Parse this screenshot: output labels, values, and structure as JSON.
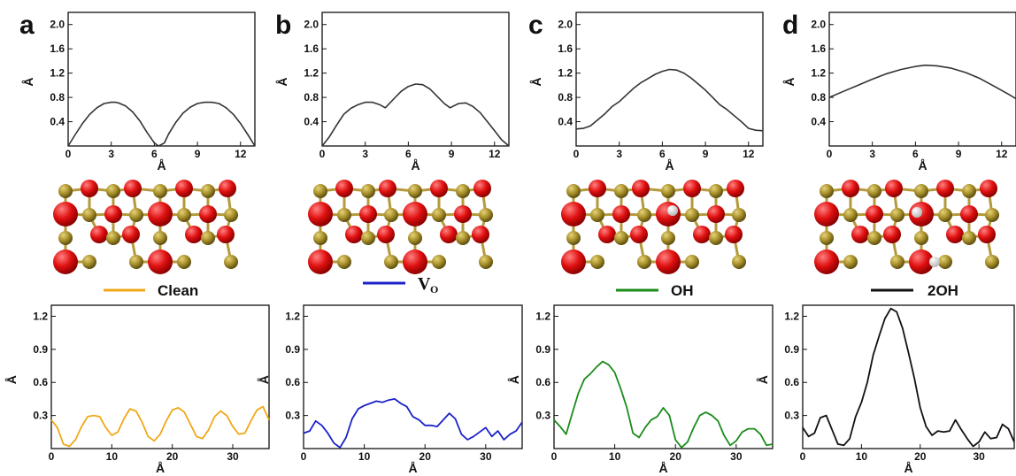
{
  "panel_labels": [
    "a",
    "b",
    "c",
    "d"
  ],
  "chart_data": [
    {
      "type": "line",
      "panel": "a",
      "role": "top",
      "xlabel": "Å",
      "ylabel": "Å",
      "xlim": [
        0,
        13
      ],
      "ylim": [
        0,
        2.2
      ],
      "xticks": [
        "0",
        "3",
        "6",
        "9",
        "12"
      ],
      "yticks": [
        "0.4",
        "0.8",
        "1.2",
        "1.6",
        "2.0"
      ],
      "color": "#333333",
      "x": [
        0,
        0.5,
        1,
        1.5,
        2,
        2.5,
        3,
        3.3,
        3.5,
        4,
        4.5,
        5,
        5.5,
        6,
        6.3,
        6.7,
        7,
        7.5,
        8,
        8.5,
        9,
        9.5,
        10,
        10.5,
        11,
        11.5,
        12,
        12.5,
        13
      ],
      "y": [
        0,
        0.19,
        0.37,
        0.52,
        0.63,
        0.7,
        0.72,
        0.72,
        0.71,
        0.66,
        0.56,
        0.41,
        0.22,
        0.05,
        0,
        0.05,
        0.2,
        0.39,
        0.54,
        0.64,
        0.7,
        0.72,
        0.72,
        0.7,
        0.63,
        0.52,
        0.37,
        0.19,
        0
      ]
    },
    {
      "type": "line",
      "panel": "b",
      "role": "top",
      "xlabel": "Å",
      "ylabel": "Å",
      "xlim": [
        0,
        13
      ],
      "ylim": [
        0,
        2.2
      ],
      "xticks": [
        "0",
        "3",
        "6",
        "9",
        "12"
      ],
      "yticks": [
        "0.4",
        "0.8",
        "1.2",
        "1.6",
        "2.0"
      ],
      "color": "#333333",
      "x": [
        0,
        0.5,
        1,
        1.5,
        2,
        2.5,
        3,
        3.5,
        4,
        4.4,
        5,
        5.5,
        6,
        6.5,
        7,
        7.5,
        8,
        8.5,
        8.9,
        9.5,
        10,
        10.5,
        11,
        11.5,
        12,
        12.5,
        13
      ],
      "y": [
        0,
        0.15,
        0.34,
        0.52,
        0.62,
        0.68,
        0.72,
        0.72,
        0.68,
        0.63,
        0.78,
        0.9,
        0.98,
        1.02,
        1.01,
        0.94,
        0.82,
        0.7,
        0.63,
        0.7,
        0.71,
        0.65,
        0.55,
        0.4,
        0.25,
        0.1,
        0
      ]
    },
    {
      "type": "line",
      "panel": "c",
      "role": "top",
      "xlabel": "Å",
      "ylabel": "Å",
      "xlim": [
        0,
        13
      ],
      "ylim": [
        0,
        2.2
      ],
      "xticks": [
        "0",
        "3",
        "6",
        "9",
        "12"
      ],
      "yticks": [
        "0.4",
        "0.8",
        "1.2",
        "1.6",
        "2.0"
      ],
      "color": "#333333",
      "x": [
        0,
        0.5,
        1,
        1.5,
        2,
        2.5,
        3,
        3.5,
        4,
        4.5,
        5,
        5.5,
        6,
        6.5,
        7,
        7.5,
        8,
        8.5,
        9,
        9.5,
        10,
        10.5,
        11,
        11.5,
        12,
        12.5,
        13
      ],
      "y": [
        0.28,
        0.29,
        0.33,
        0.43,
        0.53,
        0.65,
        0.73,
        0.84,
        0.95,
        1.04,
        1.11,
        1.18,
        1.23,
        1.26,
        1.25,
        1.2,
        1.12,
        1.02,
        0.92,
        0.8,
        0.68,
        0.6,
        0.5,
        0.4,
        0.29,
        0.26,
        0.25
      ]
    },
    {
      "type": "line",
      "panel": "d",
      "role": "top",
      "xlabel": "Å",
      "ylabel": "Å",
      "xlim": [
        0,
        13
      ],
      "ylim": [
        0,
        2.2
      ],
      "xticks": [
        "0",
        "3",
        "6",
        "9",
        "12"
      ],
      "yticks": [
        "0.4",
        "0.8",
        "1.2",
        "1.6",
        "2.0"
      ],
      "color": "#333333",
      "x": [
        0,
        1,
        2,
        3,
        4,
        5,
        6,
        6.7,
        7.5,
        8.5,
        9.5,
        10.5,
        11.5,
        12.5,
        13
      ],
      "y": [
        0.8,
        0.9,
        1.0,
        1.1,
        1.19,
        1.26,
        1.31,
        1.33,
        1.32,
        1.28,
        1.21,
        1.11,
        0.98,
        0.85,
        0.78
      ]
    },
    {
      "type": "line",
      "panel": "a",
      "role": "bottom",
      "xlabel": "Å",
      "ylabel": "Å",
      "xlim": [
        0,
        36
      ],
      "ylim": [
        0,
        1.3
      ],
      "xticks": [
        "0",
        "10",
        "20",
        "30"
      ],
      "yticks": [
        "0.3",
        "0.6",
        "0.9",
        "1.2"
      ],
      "legend": "Clean",
      "color": "#f0a818",
      "x": [
        0,
        1,
        2,
        3,
        4,
        5,
        6,
        7,
        8,
        9,
        10,
        11,
        12,
        13,
        14,
        15,
        16,
        17,
        18,
        19,
        20,
        21,
        22,
        23,
        24,
        25,
        26,
        27,
        28,
        29,
        30,
        31,
        32,
        33,
        34,
        35,
        36
      ],
      "y": [
        0.26,
        0.19,
        0.04,
        0.02,
        0.08,
        0.2,
        0.29,
        0.3,
        0.29,
        0.19,
        0.12,
        0.15,
        0.27,
        0.36,
        0.34,
        0.24,
        0.11,
        0.07,
        0.13,
        0.25,
        0.35,
        0.37,
        0.33,
        0.22,
        0.11,
        0.09,
        0.17,
        0.29,
        0.34,
        0.3,
        0.2,
        0.13,
        0.14,
        0.25,
        0.35,
        0.38,
        0.26
      ]
    },
    {
      "type": "line",
      "panel": "b",
      "role": "bottom",
      "xlabel": "Å",
      "ylabel": "Å",
      "xlim": [
        0,
        36
      ],
      "ylim": [
        0,
        1.3
      ],
      "xticks": [
        "0",
        "10",
        "20",
        "30"
      ],
      "yticks": [
        "0.3",
        "0.6",
        "0.9",
        "1.2"
      ],
      "legend": "VO",
      "color": "#1c21c8",
      "x": [
        0,
        1,
        2,
        3,
        4,
        5,
        6,
        7,
        8,
        9,
        10,
        11,
        12,
        13,
        14,
        15,
        16,
        17,
        18,
        19,
        20,
        21,
        22,
        23,
        24,
        25,
        26,
        27,
        28,
        29,
        30,
        31,
        32,
        33,
        34,
        35,
        36
      ],
      "y": [
        0.14,
        0.16,
        0.25,
        0.21,
        0.14,
        0.05,
        0.01,
        0.1,
        0.27,
        0.36,
        0.39,
        0.41,
        0.43,
        0.42,
        0.44,
        0.45,
        0.41,
        0.38,
        0.29,
        0.26,
        0.21,
        0.21,
        0.2,
        0.26,
        0.32,
        0.27,
        0.13,
        0.08,
        0.11,
        0.15,
        0.19,
        0.11,
        0.16,
        0.08,
        0.13,
        0.16,
        0.24
      ]
    },
    {
      "type": "line",
      "panel": "c",
      "role": "bottom",
      "xlabel": "Å",
      "ylabel": "Å",
      "xlim": [
        0,
        36
      ],
      "ylim": [
        0,
        1.3
      ],
      "xticks": [
        "0",
        "10",
        "20",
        "30"
      ],
      "yticks": [
        "0.3",
        "0.6",
        "0.9",
        "1.2"
      ],
      "legend": "OH",
      "color": "#1a8c1a",
      "x": [
        0,
        1,
        2,
        3,
        4,
        5,
        6,
        7,
        8,
        9,
        10,
        11,
        12,
        13,
        14,
        15,
        16,
        17,
        18,
        19,
        20,
        21,
        22,
        23,
        24,
        25,
        26,
        27,
        28,
        29,
        30,
        31,
        32,
        33,
        34,
        35,
        36
      ],
      "y": [
        0.26,
        0.2,
        0.13,
        0.32,
        0.5,
        0.63,
        0.68,
        0.74,
        0.79,
        0.76,
        0.69,
        0.54,
        0.37,
        0.14,
        0.1,
        0.19,
        0.26,
        0.29,
        0.37,
        0.3,
        0.08,
        0.01,
        0.06,
        0.19,
        0.3,
        0.33,
        0.3,
        0.25,
        0.12,
        0.03,
        0.07,
        0.15,
        0.18,
        0.18,
        0.13,
        0.03,
        0.04
      ]
    },
    {
      "type": "line",
      "panel": "d",
      "role": "bottom",
      "xlabel": "Å",
      "ylabel": "Å",
      "xlim": [
        0,
        36
      ],
      "ylim": [
        0,
        1.3
      ],
      "xticks": [
        "0",
        "10",
        "20",
        "30"
      ],
      "yticks": [
        "0.3",
        "0.6",
        "0.9",
        "1.2"
      ],
      "legend": "2OH",
      "color": "#111111",
      "x": [
        0,
        1,
        2,
        3,
        4,
        5,
        6,
        7,
        8,
        9,
        10,
        11,
        12,
        13,
        14,
        15,
        16,
        17,
        18,
        19,
        20,
        21,
        22,
        23,
        24,
        25,
        26,
        27,
        28,
        29,
        30,
        31,
        32,
        33,
        34,
        35,
        36
      ],
      "y": [
        0.19,
        0.11,
        0.14,
        0.28,
        0.3,
        0.17,
        0.04,
        0.03,
        0.09,
        0.29,
        0.42,
        0.6,
        0.85,
        1.02,
        1.18,
        1.27,
        1.24,
        1.09,
        0.87,
        0.64,
        0.37,
        0.2,
        0.12,
        0.16,
        0.15,
        0.16,
        0.26,
        0.17,
        0.09,
        0.02,
        0.06,
        0.15,
        0.09,
        0.1,
        0.22,
        0.18,
        0.06
      ]
    }
  ]
}
